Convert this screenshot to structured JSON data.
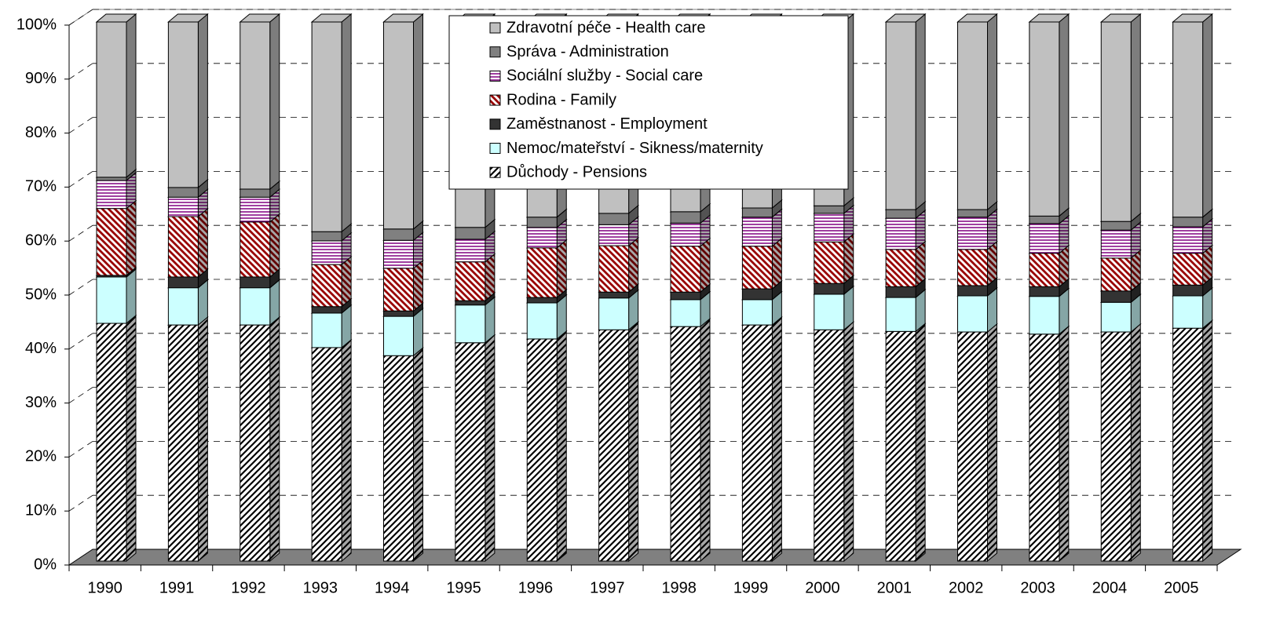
{
  "chart_data": {
    "type": "stacked-bar-3d-percent",
    "categories": [
      "1990",
      "1991",
      "1992",
      "1993",
      "1994",
      "1995",
      "1996",
      "1997",
      "1998",
      "1999",
      "2000",
      "2001",
      "2002",
      "2003",
      "2004",
      "2005"
    ],
    "ylim": [
      0,
      100
    ],
    "yticks": [
      {
        "value": 0,
        "label": "0%"
      },
      {
        "value": 10,
        "label": "10%"
      },
      {
        "value": 20,
        "label": "20%"
      },
      {
        "value": 30,
        "label": "30%"
      },
      {
        "value": 40,
        "label": "40%"
      },
      {
        "value": 50,
        "label": "50%"
      },
      {
        "value": 60,
        "label": "60%"
      },
      {
        "value": 70,
        "label": "70%"
      },
      {
        "value": 80,
        "label": "80%"
      },
      {
        "value": 90,
        "label": "90%"
      },
      {
        "value": 100,
        "label": "100%"
      }
    ],
    "grid": true,
    "series": [
      {
        "name": "Důchody - Pensions",
        "color": "#000000",
        "pattern": "diag-up",
        "values": [
          44.1,
          43.8,
          43.8,
          39.6,
          38.1,
          40.5,
          41.2,
          42.9,
          43.5,
          43.8,
          42.9,
          42.6,
          42.5,
          42.1,
          42.5,
          43.2
        ]
      },
      {
        "name": "Nemoc/mateřství - Sikness/maternity",
        "color": "#ccffff",
        "pattern": "solid",
        "values": [
          8.6,
          6.9,
          6.9,
          6.4,
          7.3,
          7.0,
          6.7,
          5.9,
          5.0,
          4.7,
          6.6,
          6.3,
          6.7,
          7.0,
          5.5,
          6.0
        ]
      },
      {
        "name": "Zaměstnanost - Employment",
        "color": "#333333",
        "pattern": "solid",
        "values": [
          0.3,
          2.0,
          2.0,
          1.2,
          1.0,
          0.8,
          1.0,
          1.1,
          1.4,
          2.0,
          2.0,
          2.0,
          1.9,
          1.8,
          2.1,
          2.0
        ]
      },
      {
        "name": "Rodina - Family",
        "color": "#990000",
        "pattern": "diag-down",
        "values": [
          12.4,
          11.2,
          10.2,
          7.8,
          7.9,
          7.2,
          9.2,
          8.6,
          8.5,
          7.9,
          7.7,
          6.9,
          6.7,
          6.2,
          6.1,
          5.9
        ]
      },
      {
        "name": "Sociální služby - Social care",
        "color": "#800080",
        "pattern": "horizontal",
        "values": [
          5.2,
          3.6,
          4.6,
          4.4,
          5.2,
          4.2,
          3.8,
          3.9,
          4.3,
          5.4,
          5.3,
          5.8,
          6.0,
          5.5,
          5.2,
          4.9
        ]
      },
      {
        "name": "Správa - Administration",
        "color": "#808080",
        "pattern": "solid",
        "values": [
          0.6,
          1.8,
          1.5,
          1.7,
          2.1,
          2.2,
          1.9,
          2.1,
          2.1,
          1.7,
          1.4,
          1.6,
          1.4,
          1.4,
          1.6,
          1.8
        ]
      },
      {
        "name": "Zdravotní péče - Health care",
        "color": "#c0c0c0",
        "pattern": "solid",
        "values": [
          28.8,
          30.7,
          31.0,
          38.9,
          38.4,
          38.1,
          36.2,
          35.5,
          35.2,
          34.5,
          34.1,
          34.8,
          34.8,
          36.0,
          37.0,
          36.2
        ]
      }
    ]
  }
}
